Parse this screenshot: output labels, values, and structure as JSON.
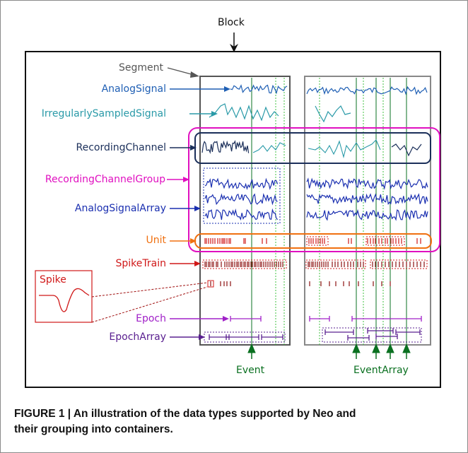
{
  "labels": {
    "block": "Block",
    "segment": "Segment",
    "analog_signal": "AnalogSignal",
    "irregular_signal": "IrregularlySampledSignal",
    "recording_channel": "RecordingChannel",
    "recording_channel_group": "RecordingChannelGroup",
    "analog_signal_array": "AnalogSignalArray",
    "unit": "Unit",
    "spike_train": "SpikeTrain",
    "spike": "Spike",
    "epoch": "Epoch",
    "epoch_array": "EpochArray",
    "event": "Event",
    "event_array": "EventArray"
  },
  "caption": {
    "line1": "FIGURE 1 | An illustration of the data types supported by Neo and",
    "line2": "their grouping into containers."
  },
  "colors": {
    "analog_signal": "#1f5fb4",
    "irregular_signal": "#2a9aa8",
    "recording_channel": "#1b2f5a",
    "recording_channel_group": "#e010c0",
    "analog_signal_array": "#1a2fb0",
    "unit": "#f07010",
    "spike_train": "#d01818",
    "epoch": "#a020c8",
    "epoch_array": "#5a2090",
    "event": "#0a7020"
  }
}
